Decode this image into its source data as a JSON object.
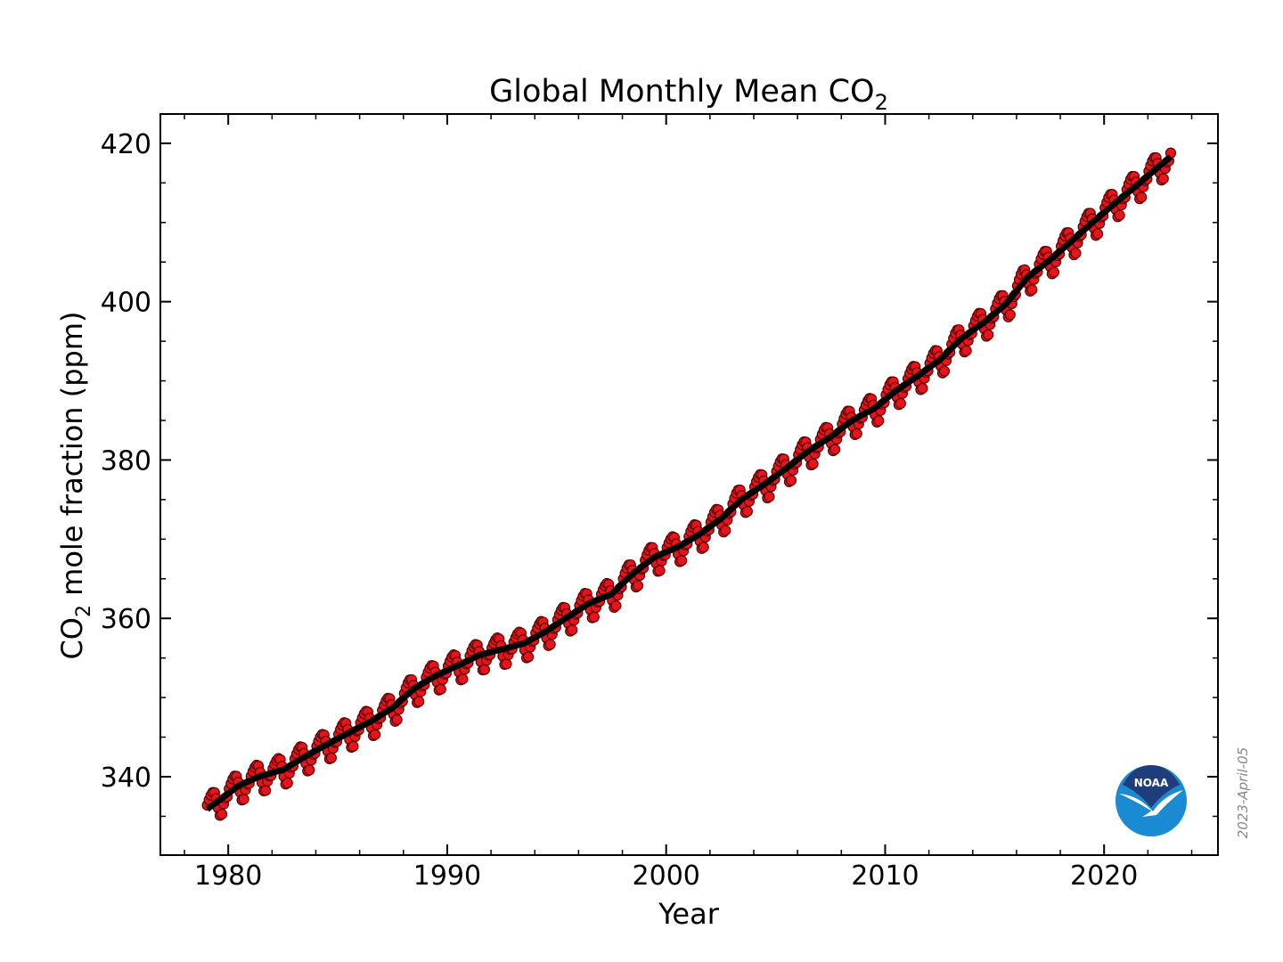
{
  "chart_data": {
    "type": "line",
    "title": "Global Monthly Mean CO",
    "title_subscript": "2",
    "xlabel": "Year",
    "ylabel_prefix": "CO",
    "ylabel_subscript": "2",
    "ylabel_suffix": " mole fraction (ppm)",
    "xlim": [
      1976.9,
      2025.2
    ],
    "ylim": [
      330.1,
      423.7
    ],
    "xticks": [
      1980,
      1990,
      2000,
      2010,
      2020
    ],
    "yticks": [
      340,
      360,
      380,
      400,
      420
    ],
    "x_minor_step": 2,
    "y_minor_step": 5,
    "grid": false,
    "annual_trend": {
      "years": [
        1979,
        1980,
        1981,
        1982,
        1983,
        1984,
        1985,
        1986,
        1987,
        1988,
        1989,
        1990,
        1991,
        1992,
        1993,
        1994,
        1995,
        1996,
        1997,
        1998,
        1999,
        2000,
        2001,
        2002,
        2003,
        2004,
        2005,
        2006,
        2007,
        2008,
        2009,
        2010,
        2011,
        2012,
        2013,
        2014,
        2015,
        2016,
        2017,
        2018,
        2019,
        2020,
        2021,
        2022,
        2023
      ],
      "values": [
        336.85,
        338.91,
        340.11,
        340.86,
        342.53,
        344.07,
        345.54,
        346.97,
        348.68,
        351.16,
        352.79,
        354.06,
        355.39,
        356.09,
        356.83,
        358.33,
        360.17,
        361.93,
        363.05,
        365.7,
        367.8,
        368.96,
        370.57,
        372.58,
        375.14,
        376.95,
        378.98,
        381.15,
        382.9,
        385.02,
        386.5,
        388.76,
        390.63,
        392.65,
        395.4,
        397.34,
        399.65,
        403.06,
        405.22,
        407.61,
        410.07,
        412.44,
        414.7,
        417.07,
        419.3
      ]
    },
    "seasonal_cycle_by_month": [
      0.5,
      1.0,
      1.4,
      1.6,
      1.4,
      0.5,
      -0.9,
      -2.0,
      -2.0,
      -0.9,
      -0.3,
      -0.3
    ],
    "series": [
      {
        "style": "monthly means",
        "color": "#e8141c",
        "edge": "#5a0000"
      },
      {
        "style": "deseasonalized trend",
        "color": "#000000"
      }
    ]
  },
  "date_stamp": "2023-April-05",
  "logo_text": "NOAA"
}
